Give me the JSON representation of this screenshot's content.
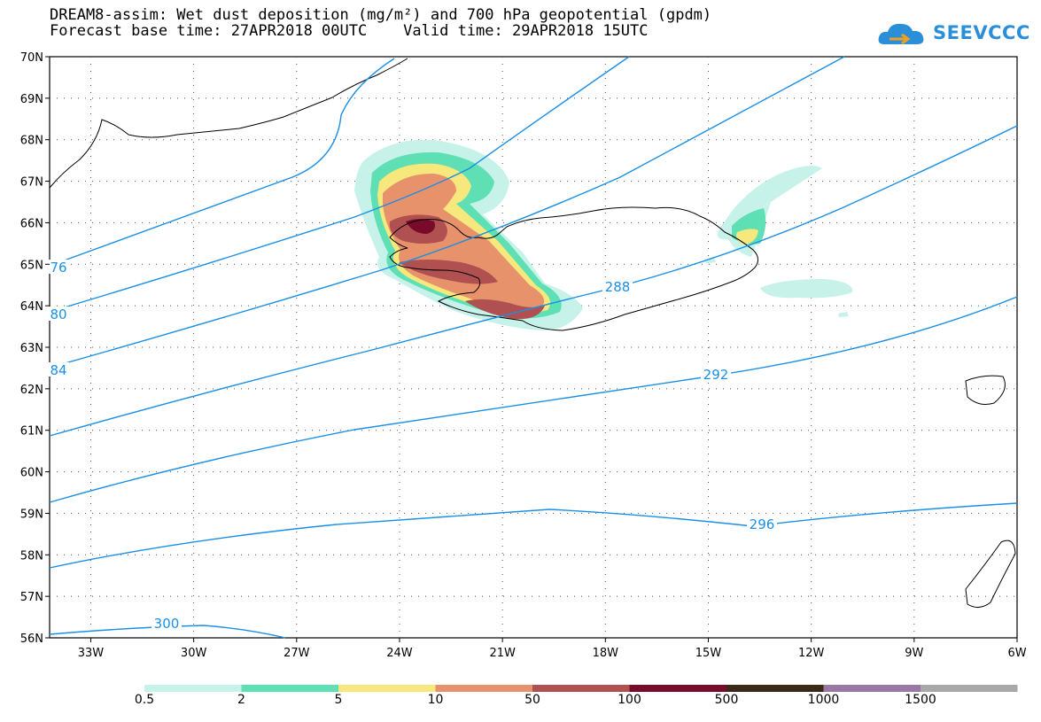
{
  "header": {
    "title_line1": "DREAM8-assim: Wet dust deposition (mg/m²) and 700 hPa geopotential (gpdm)",
    "title_line2": "Forecast base time: 27APR2018 00UTC    Valid time: 29APR2018 15UTC"
  },
  "logo": {
    "text": "SEEVCCC",
    "icon": "cloud-logo-icon",
    "color": "#2a8fd8"
  },
  "map": {
    "lat_labels": [
      "70N",
      "69N",
      "68N",
      "67N",
      "66N",
      "65N",
      "64N",
      "63N",
      "62N",
      "61N",
      "60N",
      "59N",
      "58N",
      "57N",
      "56N"
    ],
    "lon_labels": [
      "33W",
      "30W",
      "27W",
      "24W",
      "21W",
      "18W",
      "15W",
      "12W",
      "9W",
      "6W"
    ],
    "lat_range": [
      56,
      70
    ],
    "lon_range": [
      -34.2,
      -6
    ],
    "grid": "dotted",
    "contour_color": "#1a8fe6",
    "contour_labels": [
      "76",
      "80",
      "84",
      "288",
      "292",
      "296",
      "300"
    ]
  },
  "legend": {
    "colors": [
      "#c6f2ea",
      "#5fe0b4",
      "#f6e87c",
      "#e8926c",
      "#b05050",
      "#7a0a2a",
      "#3a2818",
      "#9a78a6",
      "#a8a8a8"
    ],
    "labels": [
      "0.5",
      "2",
      "5",
      "10",
      "50",
      "100",
      "500",
      "1000",
      "1500"
    ]
  }
}
